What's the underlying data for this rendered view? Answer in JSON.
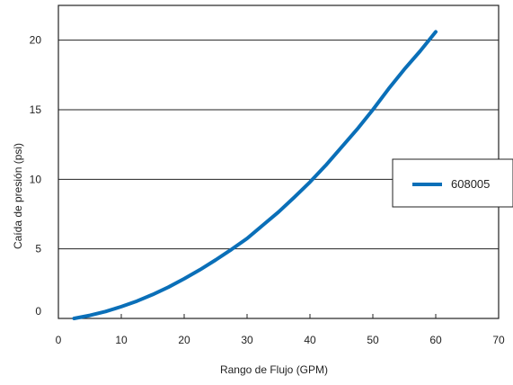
{
  "chart_data": {
    "type": "line",
    "title": "",
    "xlabel": "Rango de Flujo (GPM)",
    "ylabel": "Caída de presión (psi)",
    "xlim": [
      0,
      70
    ],
    "ylim": [
      0,
      22.5
    ],
    "x_ticks": [
      "0",
      "10",
      "20",
      "30",
      "40",
      "50",
      "60",
      "70"
    ],
    "y_ticks": [
      "0",
      "5",
      "10",
      "15",
      "20"
    ],
    "grid": "horizontal",
    "legend_position": "right",
    "series": [
      {
        "name": "608005",
        "color": "#0a6fb8",
        "x": [
          2.5,
          5,
          7.5,
          10,
          12.5,
          15,
          17.5,
          20,
          22.5,
          25,
          27.5,
          30,
          32.5,
          35,
          37.5,
          40,
          42.5,
          45,
          47.5,
          50,
          52.5,
          55,
          57.5,
          60
        ],
        "y": [
          0.0,
          0.22,
          0.5,
          0.85,
          1.25,
          1.72,
          2.25,
          2.85,
          3.5,
          4.2,
          4.95,
          5.75,
          6.7,
          7.65,
          8.7,
          9.8,
          11.0,
          12.3,
          13.6,
          15.0,
          16.5,
          17.9,
          19.2,
          20.6
        ]
      }
    ]
  }
}
